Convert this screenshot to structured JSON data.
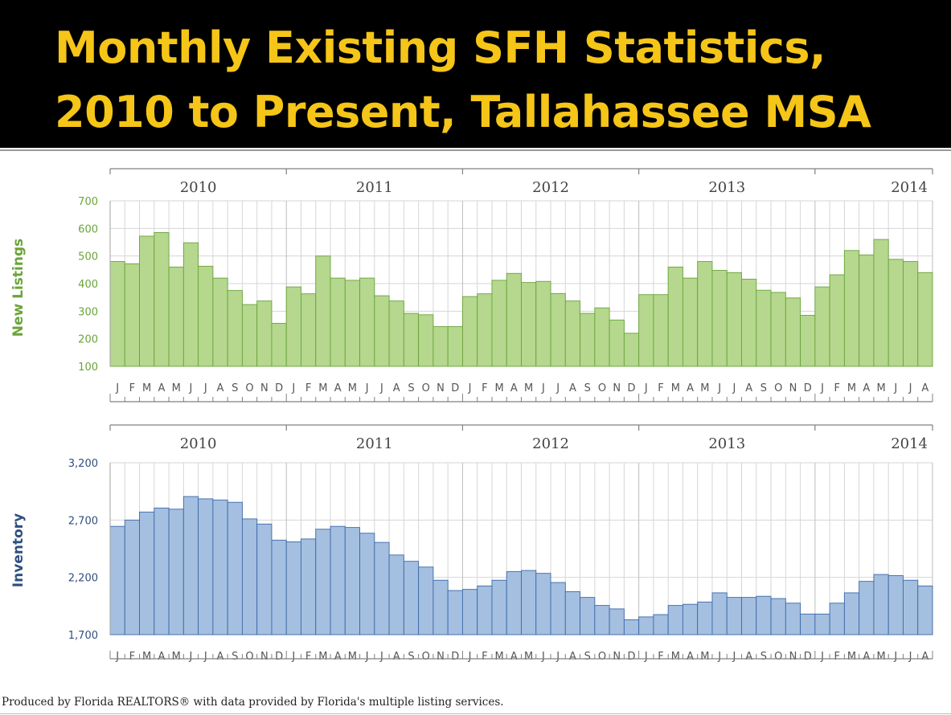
{
  "slide": {
    "title_line1": "Monthly Existing SFH Statistics,",
    "title_line2": "2010 to Present, Tallahassee MSA",
    "footer": "Produced by Florida REALTORS® with data provided by Florida's multiple listing services."
  },
  "colors": {
    "title_text": "#f5c518",
    "title_bg": "#000000",
    "green_fill": "#b5d78e",
    "green_stroke": "#6aa43a",
    "blue_fill": "#a4bfe0",
    "blue_stroke": "#3d6aa8",
    "grid": "#d6d6d6",
    "axis": "#808080"
  },
  "chart_data": [
    {
      "type": "bar",
      "title": "",
      "ylabel": "New Listings",
      "xlabel": "",
      "ylim": [
        100,
        700
      ],
      "yticks": [
        100,
        200,
        300,
        400,
        500,
        600,
        700
      ],
      "ytick_labels": [
        "100",
        "200",
        "300",
        "400",
        "500",
        "600",
        "700"
      ],
      "grid": true,
      "years": [
        "2010",
        "2011",
        "2012",
        "2013",
        "2014"
      ],
      "months_per_year": [
        12,
        12,
        12,
        12,
        8
      ],
      "categories": [
        "J",
        "F",
        "M",
        "A",
        "M",
        "J",
        "J",
        "A",
        "S",
        "O",
        "N",
        "D",
        "J",
        "F",
        "M",
        "A",
        "M",
        "J",
        "J",
        "A",
        "S",
        "O",
        "N",
        "D",
        "J",
        "F",
        "M",
        "A",
        "M",
        "J",
        "J",
        "A",
        "S",
        "O",
        "N",
        "D",
        "J",
        "F",
        "M",
        "A",
        "M",
        "J",
        "J",
        "A",
        "S",
        "O",
        "N",
        "D",
        "J",
        "F",
        "M",
        "A",
        "M",
        "J",
        "J",
        "A"
      ],
      "values": [
        480,
        472,
        572,
        585,
        460,
        548,
        463,
        420,
        375,
        324,
        337,
        256,
        388,
        363,
        500,
        420,
        412,
        420,
        356,
        337,
        292,
        287,
        244,
        244,
        353,
        363,
        412,
        437,
        404,
        408,
        364,
        337,
        292,
        312,
        268,
        220,
        360,
        360,
        460,
        420,
        480,
        448,
        440,
        416,
        376,
        368,
        348,
        285,
        388,
        432,
        520,
        504,
        560,
        488,
        480,
        440
      ]
    },
    {
      "type": "bar",
      "title": "",
      "ylabel": "Inventory",
      "xlabel": "",
      "ylim": [
        1700,
        3200
      ],
      "yticks": [
        1700,
        2200,
        2700,
        3200
      ],
      "ytick_labels": [
        "1,700",
        "2,200",
        "2,700",
        "3,200"
      ],
      "grid": true,
      "years": [
        "2010",
        "2011",
        "2012",
        "2013",
        "2014"
      ],
      "months_per_year": [
        12,
        12,
        12,
        12,
        8
      ],
      "categories": [
        "J",
        "F",
        "M",
        "A",
        "M",
        "J",
        "J",
        "A",
        "S",
        "O",
        "N",
        "D",
        "J",
        "F",
        "M",
        "A",
        "M",
        "J",
        "J",
        "A",
        "S",
        "O",
        "N",
        "D",
        "J",
        "F",
        "M",
        "A",
        "M",
        "J",
        "J",
        "A",
        "S",
        "O",
        "N",
        "D",
        "J",
        "F",
        "M",
        "A",
        "M",
        "J",
        "J",
        "A",
        "S",
        "O",
        "N",
        "D",
        "J",
        "F",
        "M",
        "A",
        "M",
        "J",
        "J",
        "A"
      ],
      "values": [
        2645,
        2700,
        2770,
        2805,
        2795,
        2905,
        2885,
        2875,
        2855,
        2710,
        2665,
        2525,
        2510,
        2535,
        2620,
        2645,
        2635,
        2585,
        2505,
        2395,
        2340,
        2290,
        2175,
        2085,
        2095,
        2125,
        2175,
        2250,
        2260,
        2235,
        2155,
        2075,
        2025,
        1955,
        1925,
        1830,
        1855,
        1875,
        1955,
        1965,
        1985,
        2065,
        2025,
        2025,
        2035,
        2015,
        1975,
        1880,
        1880,
        1975,
        2065,
        2165,
        2225,
        2215,
        2175,
        2125
      ]
    }
  ]
}
